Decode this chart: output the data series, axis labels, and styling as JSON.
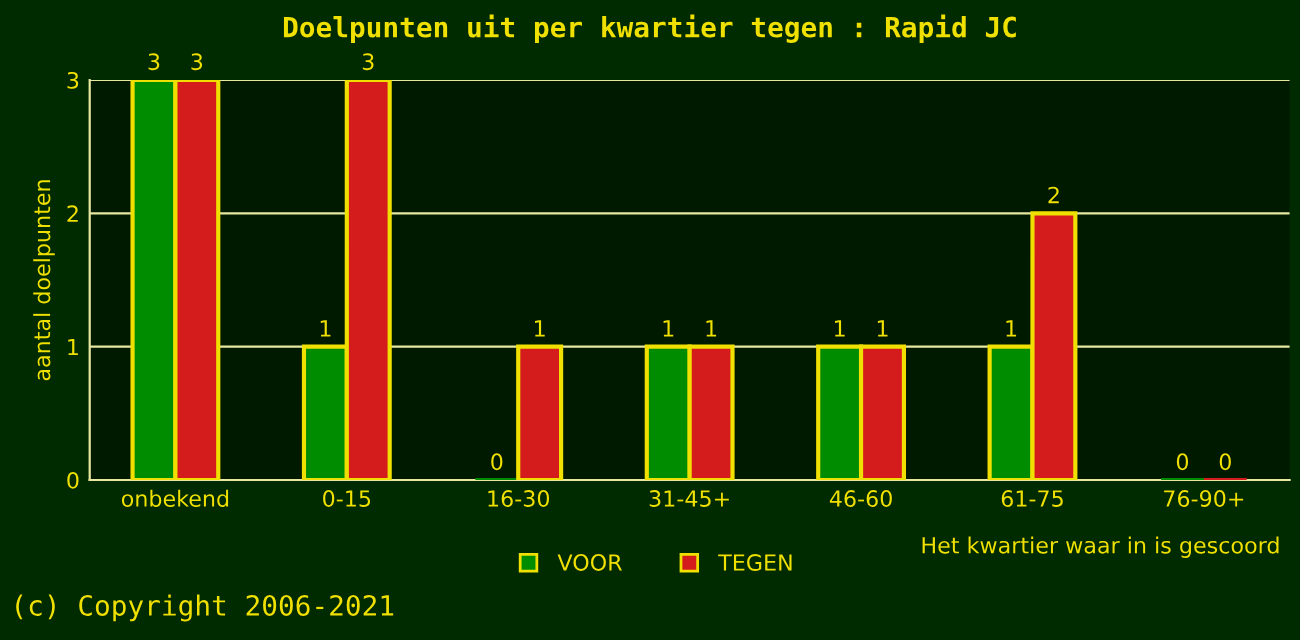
{
  "chart_data": {
    "type": "bar",
    "title": "Doelpunten uit per kwartier tegen : Rapid JC",
    "categories": [
      "onbekend",
      "0-15",
      "16-30",
      "31-45+",
      "46-60",
      "61-75",
      "76-90+"
    ],
    "series": [
      {
        "name": "VOOR",
        "color": "#008c00",
        "values": [
          3,
          1,
          0,
          1,
          1,
          1,
          0
        ]
      },
      {
        "name": "TEGEN",
        "color": "#d41c1c",
        "values": [
          3,
          3,
          1,
          1,
          1,
          2,
          0
        ]
      }
    ],
    "ylim": [
      0,
      3
    ],
    "yticks": [
      0,
      1,
      2,
      3
    ],
    "grid": "y",
    "legend": "bottom",
    "data_labels": true,
    "ylabel": "aantal doelpunten",
    "xlabel": "Het kwartier waar in is gescoord",
    "annotations": [
      "(c) Copyright 2006-2021"
    ]
  }
}
